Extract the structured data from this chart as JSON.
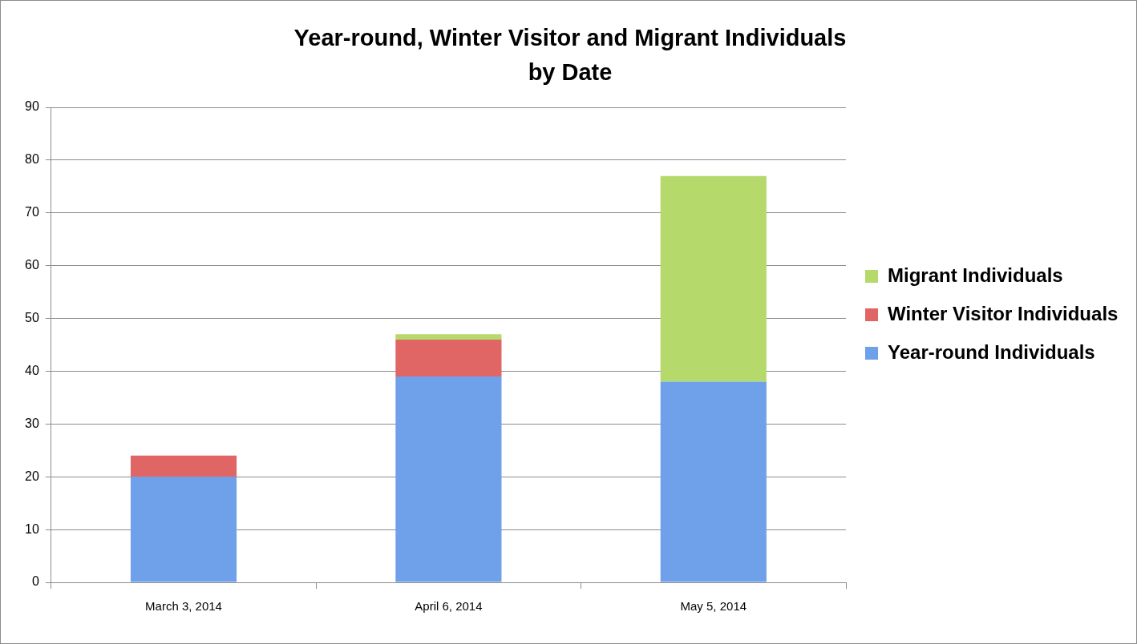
{
  "chart_data": {
    "type": "bar",
    "title": "Year-round, Winter Visitor and Migrant Individuals\nby Date",
    "categories": [
      "March 3, 2014",
      "April 6, 2014",
      "May 5, 2014"
    ],
    "series": [
      {
        "name": "Year-round Individuals",
        "color": "#6fa1ea",
        "values": [
          20,
          39,
          38
        ]
      },
      {
        "name": "Winter Visitor Individuals",
        "color": "#e06666",
        "values": [
          4,
          7,
          0
        ]
      },
      {
        "name": "Migrant Individuals",
        "color": "#b6d96c",
        "values": [
          0,
          1,
          39
        ]
      }
    ],
    "stacked": true,
    "ylim": [
      0,
      90
    ],
    "yticks": [
      0,
      10,
      20,
      30,
      40,
      50,
      60,
      70,
      80,
      90
    ],
    "grid": "y",
    "legend": "right"
  }
}
